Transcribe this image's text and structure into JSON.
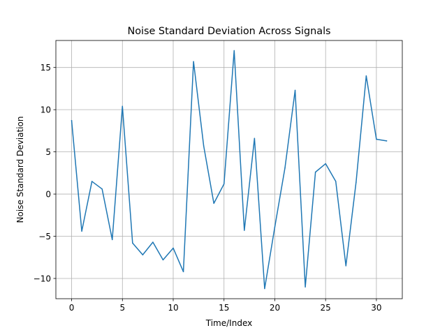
{
  "chart_data": {
    "type": "line",
    "title": "Noise Standard Deviation Across Signals",
    "xlabel": "Time/Index",
    "ylabel": "Noise Standard Deviation",
    "xlim": [
      -1.55,
      32.55
    ],
    "ylim": [
      -12.4,
      18.2
    ],
    "xticks": [
      0,
      5,
      10,
      15,
      20,
      25,
      30
    ],
    "yticks": [
      -10,
      -5,
      0,
      5,
      10,
      15
    ],
    "ytick_labels": [
      "−10",
      "−5",
      "0",
      "5",
      "10",
      "15"
    ],
    "grid": true,
    "series": [
      {
        "color": "#1f77b4",
        "x": [
          0,
          1,
          2,
          3,
          4,
          5,
          6,
          7,
          8,
          9,
          10,
          11,
          12,
          13,
          14,
          15,
          16,
          17,
          18,
          19,
          20,
          21,
          22,
          23,
          24,
          25,
          26,
          27,
          28,
          29,
          30,
          31
        ],
        "values": [
          8.7,
          -4.4,
          1.5,
          0.6,
          -5.4,
          10.4,
          -5.8,
          -7.2,
          -5.7,
          -7.8,
          -6.4,
          -9.2,
          15.7,
          5.7,
          -1.1,
          1.2,
          17.0,
          -4.3,
          6.6,
          -11.2,
          -3.9,
          3.1,
          12.3,
          -11.0,
          2.6,
          3.6,
          1.5,
          -8.5,
          1.4,
          14.0,
          6.5,
          6.3
        ]
      }
    ]
  }
}
